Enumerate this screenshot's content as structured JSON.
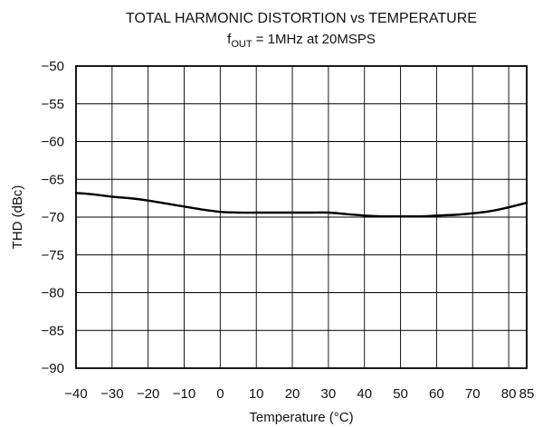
{
  "chart_data": {
    "type": "line",
    "title": "TOTAL HARMONIC DISTORTION vs TEMPERATURE",
    "subtitle": {
      "prefix": "f",
      "subscript": "OUT",
      "suffix": " = 1MHz at 20MSPS"
    },
    "xlabel": "Temperature (°C)",
    "ylabel": "THD (dBc)",
    "xlim": [
      -40,
      85
    ],
    "ylim": [
      -90,
      -50
    ],
    "x_ticks": [
      -40,
      -30,
      -20,
      -10,
      0,
      10,
      20,
      30,
      40,
      50,
      60,
      70,
      80,
      85
    ],
    "x_tick_labels": [
      "−40",
      "−30",
      "−20",
      "−10",
      "0",
      "10",
      "20",
      "30",
      "40",
      "50",
      "60",
      "70",
      "80",
      "85"
    ],
    "y_ticks": [
      -50,
      -55,
      -60,
      -65,
      -70,
      -75,
      -80,
      -85,
      -90
    ],
    "y_tick_labels": [
      "−50",
      "−55",
      "−60",
      "−65",
      "−70",
      "−75",
      "−80",
      "−85",
      "−90"
    ],
    "grid": true,
    "series": [
      {
        "x": [
          -40,
          -35,
          -30,
          -25,
          -20,
          -15,
          -10,
          -5,
          0,
          5,
          10,
          15,
          20,
          25,
          30,
          35,
          40,
          45,
          50,
          55,
          60,
          65,
          70,
          75,
          80,
          85
        ],
        "values": [
          -66.8,
          -67.0,
          -67.3,
          -67.5,
          -67.8,
          -68.2,
          -68.6,
          -69.0,
          -69.3,
          -69.4,
          -69.4,
          -69.4,
          -69.4,
          -69.4,
          -69.4,
          -69.6,
          -69.8,
          -69.9,
          -69.9,
          -69.9,
          -69.8,
          -69.7,
          -69.5,
          -69.2,
          -68.7,
          -68.1
        ]
      }
    ]
  }
}
